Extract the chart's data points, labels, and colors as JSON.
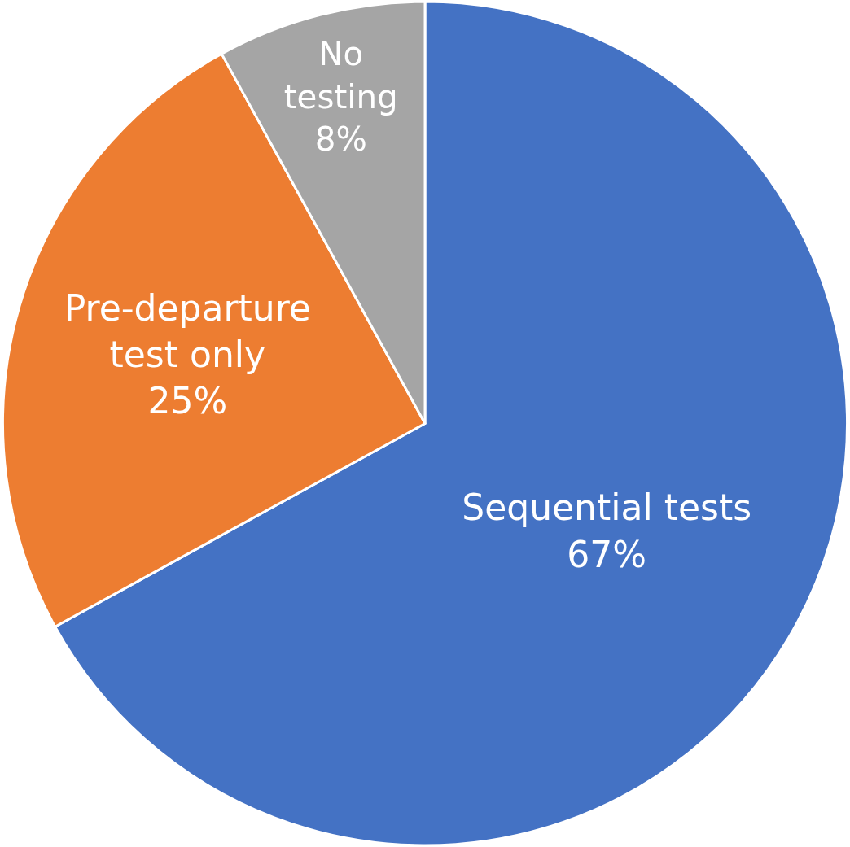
{
  "chart_data": {
    "type": "pie",
    "categories": [
      "Sequential tests",
      "Pre-departure test only",
      "No testing"
    ],
    "values": [
      67,
      25,
      8
    ],
    "value_labels": [
      "67%",
      "25%",
      "8%"
    ],
    "colors": [
      "#4472c4",
      "#ed7d31",
      "#a5a5a5"
    ],
    "legend": false
  }
}
